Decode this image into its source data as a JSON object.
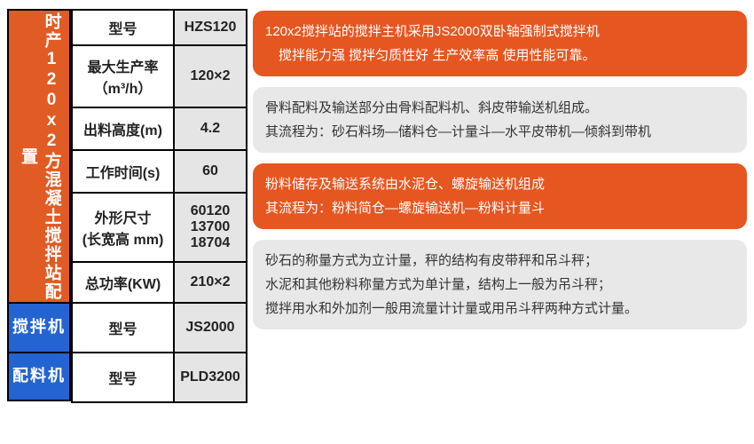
{
  "colors": {
    "orange": "#e15b24",
    "callout_orange": "#e65620",
    "blue": "#2464d2",
    "gray_bg": "#e5e5e5",
    "callout_gray": "#e8e8e8",
    "border": "#000000",
    "white": "#ffffff",
    "text": "#222222"
  },
  "sidebar": {
    "main": "时产120x2方混凝土搅拌站配置",
    "mixer": "搅拌机",
    "batch": "配料机"
  },
  "table": {
    "rows": [
      {
        "label": "型号",
        "value": "HZS120",
        "h": 40
      },
      {
        "label": "最大生产率\n（m³/h）",
        "value": "120×2",
        "h": 70
      },
      {
        "label": "出料高度(m)",
        "value": "4.2",
        "h": 48
      },
      {
        "label": "工作时间(s)",
        "value": "60",
        "h": 48
      },
      {
        "label": "外形尺寸\n(长宽高 mm)",
        "value": "60120\n13700\n18704",
        "h": 78
      },
      {
        "label": "总功率(KW)",
        "value": "210×2",
        "h": 46
      },
      {
        "label": "型号",
        "value": "JS2000",
        "h": 56
      },
      {
        "label": "型号",
        "value": "PLD3200",
        "h": 56
      }
    ]
  },
  "callouts": [
    {
      "type": "orange",
      "lines": [
        "120x2搅拌站的搅拌主机采用JS2000双卧轴强制式搅拌机",
        "　搅拌能力强 搅拌匀质性好 生产效率高 使用性能可靠。"
      ]
    },
    {
      "type": "gray",
      "lines": [
        "骨料配料及输送部分由骨料配料机、斜皮带输送机组成。",
        "其流程为：砂石料场—储料仓—计量斗—水平皮带机—倾斜到带机"
      ]
    },
    {
      "type": "orange",
      "lines": [
        "粉料储存及输送系统由水泥仓、螺旋输送机组成",
        "其流程为：粉料简仓—螺旋输送机—粉料计量斗"
      ]
    },
    {
      "type": "gray",
      "lines": [
        "砂石的称量方式为立计量，秤的结构有皮带秤和吊斗秤；",
        "水泥和其他粉料称量方式为单计量，结构上一般为吊斗秤；",
        "搅拌用水和外加剂一般用流量计计量或用吊斗秤两种方式计量。"
      ]
    }
  ]
}
